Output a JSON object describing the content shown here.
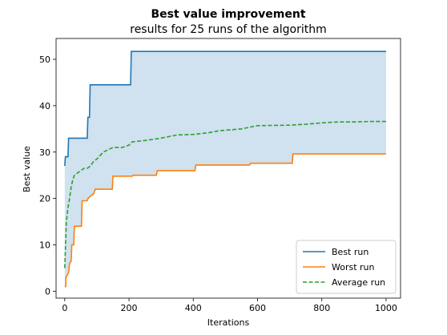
{
  "chart_data": {
    "type": "line",
    "title": "Best value improvement",
    "subtitle": "results for 25 runs of the algorithm",
    "xlabel": "Iterations",
    "ylabel": "Best value",
    "xlim": [
      -27,
      1045
    ],
    "ylim": [
      -1.5,
      54.5
    ],
    "xticks": [
      0,
      200,
      400,
      600,
      800,
      1000
    ],
    "yticks": [
      0,
      10,
      20,
      30,
      40,
      50
    ],
    "grid": false,
    "legend_position": "lower-right",
    "fill_between": {
      "upper": "Best run",
      "lower": "Worst run",
      "color": "#d0e1ef"
    },
    "series": [
      {
        "name": "Best run",
        "color": "#1f77b4",
        "style": "solid",
        "step": true,
        "points": [
          [
            0,
            27
          ],
          [
            2,
            29
          ],
          [
            10,
            29
          ],
          [
            12,
            33
          ],
          [
            70,
            33
          ],
          [
            72,
            37.5
          ],
          [
            77,
            37.5
          ],
          [
            79,
            44.5
          ],
          [
            205,
            44.5
          ],
          [
            207,
            51.7
          ],
          [
            1000,
            51.7
          ]
        ]
      },
      {
        "name": "Worst run",
        "color": "#ff7f0e",
        "style": "solid",
        "step": true,
        "points": [
          [
            0,
            1
          ],
          [
            3,
            1
          ],
          [
            4,
            3
          ],
          [
            8,
            3.5
          ],
          [
            12,
            4
          ],
          [
            15,
            6
          ],
          [
            20,
            6.5
          ],
          [
            22,
            10
          ],
          [
            28,
            10
          ],
          [
            30,
            14
          ],
          [
            52,
            14
          ],
          [
            54,
            19.5
          ],
          [
            70,
            19.5
          ],
          [
            72,
            20
          ],
          [
            80,
            20.5
          ],
          [
            90,
            21
          ],
          [
            95,
            22
          ],
          [
            148,
            22
          ],
          [
            150,
            24.8
          ],
          [
            210,
            24.8
          ],
          [
            212,
            25
          ],
          [
            285,
            25
          ],
          [
            288,
            26
          ],
          [
            405,
            26
          ],
          [
            408,
            27.2
          ],
          [
            575,
            27.2
          ],
          [
            578,
            27.6
          ],
          [
            708,
            27.6
          ],
          [
            710,
            29.6
          ],
          [
            1000,
            29.6
          ]
        ]
      },
      {
        "name": "Average run",
        "color": "#2ca02c",
        "style": "dashed",
        "step": false,
        "points": [
          [
            0,
            5
          ],
          [
            5,
            15
          ],
          [
            10,
            18
          ],
          [
            15,
            20
          ],
          [
            20,
            22.5
          ],
          [
            25,
            24
          ],
          [
            30,
            25
          ],
          [
            40,
            25.5
          ],
          [
            50,
            26
          ],
          [
            60,
            26.5
          ],
          [
            70,
            26.5
          ],
          [
            80,
            27
          ],
          [
            90,
            28
          ],
          [
            100,
            28.5
          ],
          [
            120,
            30
          ],
          [
            150,
            31
          ],
          [
            180,
            31
          ],
          [
            200,
            31.5
          ],
          [
            210,
            32.2
          ],
          [
            250,
            32.5
          ],
          [
            300,
            33
          ],
          [
            350,
            33.7
          ],
          [
            400,
            33.8
          ],
          [
            450,
            34.2
          ],
          [
            480,
            34.6
          ],
          [
            550,
            35
          ],
          [
            600,
            35.7
          ],
          [
            700,
            35.8
          ],
          [
            750,
            36
          ],
          [
            800,
            36.3
          ],
          [
            850,
            36.5
          ],
          [
            900,
            36.5
          ],
          [
            950,
            36.6
          ],
          [
            1000,
            36.6
          ]
        ]
      }
    ]
  }
}
